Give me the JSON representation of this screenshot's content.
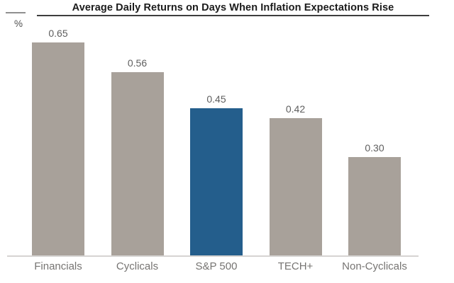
{
  "chart": {
    "title": "Average Daily Returns on Days When Inflation Expectations Rise",
    "unit_label": "%"
  },
  "chart_data": {
    "type": "bar",
    "title": "Average Daily Returns on Days When Inflation Expectations Rise",
    "ylabel": "%",
    "xlabel": "",
    "categories": [
      "Financials",
      "Cyclicals",
      "S&P 500",
      "TECH+",
      "Non-Cyclicals"
    ],
    "values": [
      0.65,
      0.56,
      0.45,
      0.42,
      0.3
    ],
    "value_labels": [
      "0.65",
      "0.56",
      "0.45",
      "0.42",
      "0.30"
    ],
    "highlight_index": 2,
    "highlighted_category": "S&P 500",
    "ylim": [
      0,
      0.7
    ],
    "grid": false,
    "legend": false,
    "colors": {
      "bar_default": "#a8a19a",
      "bar_highlight": "#245e8c",
      "title_text": "#1b1b1b",
      "value_text": "#5e5e5e",
      "category_text": "#767472",
      "axis_line": "#d6d4d2",
      "title_underline": "#3d3d3d"
    }
  }
}
